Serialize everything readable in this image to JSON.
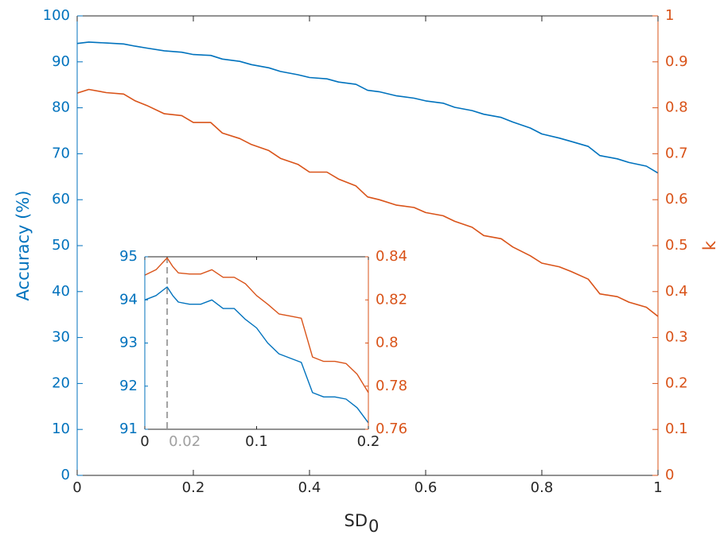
{
  "colors": {
    "left_axis": "#0072BD",
    "right_axis": "#D95319",
    "x_axis": "#262626",
    "inset_marker": "#A0A0A0"
  },
  "chart_data": [
    {
      "type": "line",
      "name": "main",
      "xlabel": "SD",
      "xlabel_subscript": "0",
      "ylabel_left": "Accuracy (%)",
      "ylabel_right": "k",
      "xlim": [
        0,
        1
      ],
      "ylim_left": [
        0,
        100
      ],
      "ylim_right": [
        0,
        1
      ],
      "xticks": [
        "0",
        "0.2",
        "0.4",
        "0.6",
        "0.8",
        "1"
      ],
      "yticks_left": [
        "0",
        "10",
        "20",
        "30",
        "40",
        "50",
        "60",
        "70",
        "80",
        "90",
        "100"
      ],
      "yticks_right": [
        "0",
        "0.1",
        "0.2",
        "0.3",
        "0.4",
        "0.5",
        "0.6",
        "0.7",
        "0.8",
        "0.9",
        "1"
      ],
      "grid": false,
      "series": [
        {
          "axis": "left",
          "color": "#0072BD",
          "x": [
            0,
            0.02,
            0.05,
            0.08,
            0.1,
            0.12,
            0.15,
            0.18,
            0.2,
            0.23,
            0.25,
            0.28,
            0.3,
            0.33,
            0.35,
            0.38,
            0.4,
            0.43,
            0.45,
            0.48,
            0.5,
            0.52,
            0.55,
            0.58,
            0.6,
            0.63,
            0.65,
            0.68,
            0.7,
            0.73,
            0.75,
            0.78,
            0.8,
            0.83,
            0.85,
            0.88,
            0.9,
            0.93,
            0.95,
            0.98,
            1
          ],
          "values": [
            94.0,
            94.3,
            94.1,
            93.9,
            93.4,
            93.0,
            92.4,
            92.1,
            91.6,
            91.4,
            90.6,
            90.1,
            89.4,
            88.7,
            87.9,
            87.2,
            86.6,
            86.3,
            85.6,
            85.1,
            83.8,
            83.5,
            82.6,
            82.1,
            81.5,
            81.0,
            80.1,
            79.4,
            78.6,
            77.9,
            76.9,
            75.6,
            74.3,
            73.4,
            72.7,
            71.6,
            69.6,
            68.9,
            68.1,
            67.3,
            65.8
          ]
        },
        {
          "axis": "right",
          "color": "#D95319",
          "x": [
            0,
            0.02,
            0.05,
            0.08,
            0.1,
            0.12,
            0.15,
            0.18,
            0.2,
            0.23,
            0.25,
            0.28,
            0.3,
            0.33,
            0.35,
            0.38,
            0.4,
            0.43,
            0.45,
            0.48,
            0.5,
            0.52,
            0.55,
            0.58,
            0.6,
            0.63,
            0.65,
            0.68,
            0.7,
            0.73,
            0.75,
            0.78,
            0.8,
            0.83,
            0.85,
            0.88,
            0.9,
            0.93,
            0.95,
            0.98,
            1
          ],
          "values": [
            0.832,
            0.84,
            0.833,
            0.83,
            0.815,
            0.805,
            0.787,
            0.783,
            0.768,
            0.768,
            0.745,
            0.733,
            0.72,
            0.707,
            0.69,
            0.677,
            0.66,
            0.66,
            0.645,
            0.63,
            0.606,
            0.6,
            0.588,
            0.583,
            0.572,
            0.565,
            0.553,
            0.54,
            0.522,
            0.515,
            0.497,
            0.478,
            0.462,
            0.454,
            0.444,
            0.427,
            0.395,
            0.389,
            0.377,
            0.366,
            0.346
          ]
        }
      ]
    },
    {
      "type": "line",
      "name": "inset",
      "xlim": [
        0,
        0.2
      ],
      "ylim_left": [
        91,
        95
      ],
      "ylim_right": [
        0.76,
        0.84
      ],
      "xticks": [
        "0",
        "0.1",
        "0.2"
      ],
      "xtick_annotation": "0.02",
      "marker_x": 0.02,
      "yticks_left": [
        "91",
        "92",
        "93",
        "94",
        "95"
      ],
      "yticks_right": [
        "0.76",
        "0.78",
        "0.8",
        "0.82",
        "0.84"
      ],
      "series": [
        {
          "axis": "left",
          "color": "#0072BD",
          "x": [
            0,
            0.01,
            0.02,
            0.025,
            0.03,
            0.04,
            0.05,
            0.06,
            0.07,
            0.08,
            0.09,
            0.1,
            0.11,
            0.12,
            0.13,
            0.14,
            0.15,
            0.16,
            0.17,
            0.18,
            0.19,
            0.2
          ],
          "values": [
            94.0,
            94.1,
            94.3,
            94.1,
            93.95,
            93.9,
            93.9,
            94.0,
            93.8,
            93.8,
            93.55,
            93.35,
            93.0,
            92.75,
            92.65,
            92.55,
            91.85,
            91.75,
            91.75,
            91.7,
            91.5,
            91.15
          ]
        },
        {
          "axis": "right",
          "color": "#D95319",
          "x": [
            0,
            0.01,
            0.02,
            0.025,
            0.03,
            0.04,
            0.05,
            0.06,
            0.07,
            0.08,
            0.09,
            0.1,
            0.11,
            0.12,
            0.13,
            0.14,
            0.15,
            0.16,
            0.17,
            0.18,
            0.19,
            0.2
          ],
          "values": [
            0.8315,
            0.834,
            0.8395,
            0.8355,
            0.8325,
            0.832,
            0.832,
            0.834,
            0.8305,
            0.8305,
            0.8275,
            0.822,
            0.818,
            0.8135,
            0.8125,
            0.8115,
            0.7935,
            0.7915,
            0.7915,
            0.7905,
            0.7855,
            0.777
          ]
        }
      ]
    }
  ]
}
